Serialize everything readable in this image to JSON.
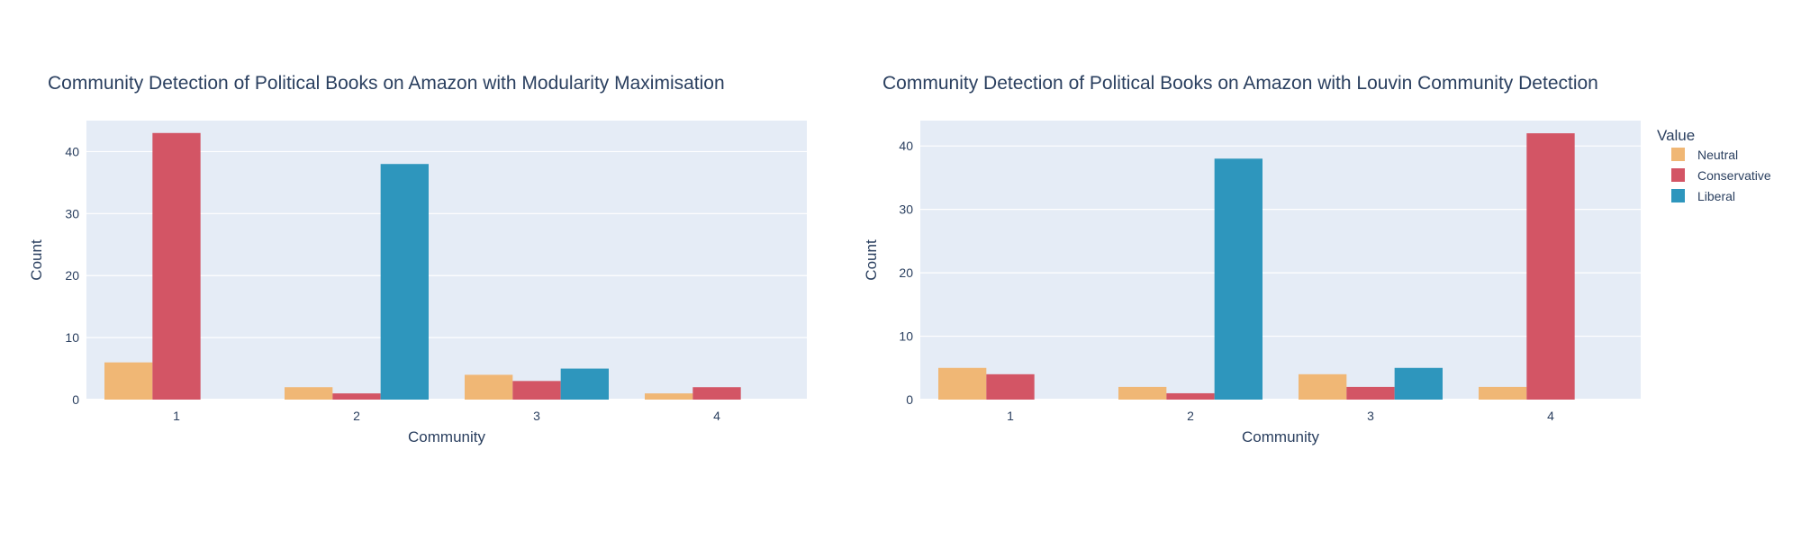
{
  "chart_data": [
    {
      "type": "bar",
      "title": "Community Detection of Political Books on Amazon with Modularity Maximisation",
      "xlabel": "Community",
      "ylabel": "Count",
      "categories": [
        "1",
        "2",
        "3",
        "4"
      ],
      "ylim": [
        0,
        45
      ],
      "yticks": [
        "0",
        "10",
        "20",
        "30",
        "40"
      ],
      "grid": true,
      "series": [
        {
          "name": "Neutral",
          "color": "#f0b775",
          "values": [
            6,
            2,
            4,
            1
          ]
        },
        {
          "name": "Conservative",
          "color": "#d35565",
          "values": [
            43,
            1,
            3,
            2
          ]
        },
        {
          "name": "Liberal",
          "color": "#2e96bd",
          "values": [
            0,
            38,
            5,
            0
          ]
        }
      ]
    },
    {
      "type": "bar",
      "title": "Community Detection of Political Books on Amazon with Louvin Community Detection",
      "xlabel": "Community",
      "ylabel": "Count",
      "categories": [
        "1",
        "2",
        "3",
        "4"
      ],
      "ylim": [
        0,
        44
      ],
      "yticks": [
        "0",
        "10",
        "20",
        "30",
        "40"
      ],
      "grid": true,
      "series": [
        {
          "name": "Neutral",
          "color": "#f0b775",
          "values": [
            5,
            2,
            4,
            2
          ]
        },
        {
          "name": "Conservative",
          "color": "#d35565",
          "values": [
            4,
            1,
            2,
            42
          ]
        },
        {
          "name": "Liberal",
          "color": "#2e96bd",
          "values": [
            0,
            38,
            5,
            0
          ]
        }
      ]
    }
  ],
  "legend": {
    "title": "Value",
    "placement": "right",
    "items": [
      {
        "label": "Neutral",
        "color": "#f0b775"
      },
      {
        "label": "Conservative",
        "color": "#d35565"
      },
      {
        "label": "Liberal",
        "color": "#2e96bd"
      }
    ]
  }
}
